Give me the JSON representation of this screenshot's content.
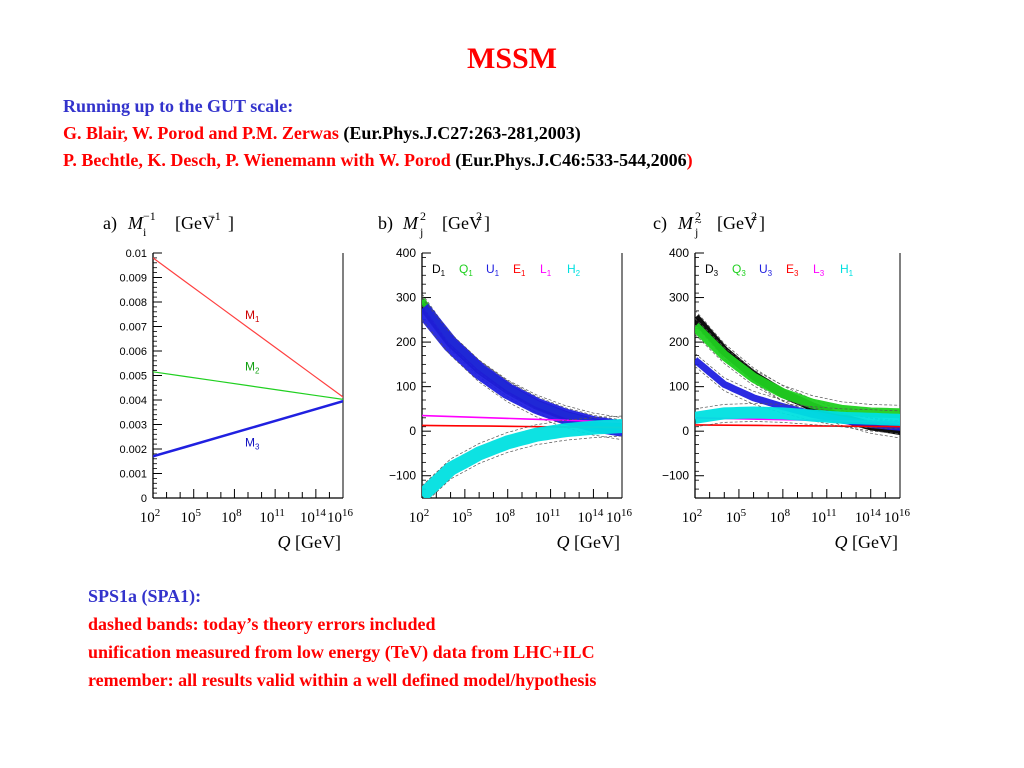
{
  "title": "MSSM",
  "refs": {
    "heading": "Running up to the GUT scale:",
    "ref1_authors": "G. Blair, W. Porod and P.M. Zerwas",
    "ref1_journal": "(Eur.Phys.J.C27:263-281,2003)",
    "ref2_authors": "P. Bechtle, K. Desch, P. Wienemann with W. Porod",
    "ref2_journal": "(Eur.Phys.J.C46:533-544,2006",
    "ref2_close": ")"
  },
  "notes": {
    "line1": "SPS1a (SPA1):",
    "line2": "dashed bands: today’s theory errors included",
    "line3": "unification measured from low energy (TeV) data from LHC+ILC",
    "line4": "remember: all results valid within a well defined model/hypothesis"
  },
  "chart_data": [
    {
      "type": "line",
      "panel_label": "a)",
      "ylabel": "[GeV⁻¹]",
      "xlabel": "Q [GeV]",
      "x_scale": "log",
      "xlim": [
        100,
        1e+16
      ],
      "ylim": [
        0,
        0.01
      ],
      "yticks": [
        "0",
        "0.001",
        "0.002",
        "0.003",
        "0.004",
        "0.005",
        "0.006",
        "0.007",
        "0.008",
        "0.009",
        "0.01"
      ],
      "xticks": [
        "10^2",
        "10^5",
        "10^8",
        "10^11",
        "10^14",
        "10^16"
      ],
      "series": [
        {
          "name": "M1",
          "color": "#ff4040",
          "x": [
            100,
            2e+16
          ],
          "y": [
            0.0098,
            0.004
          ]
        },
        {
          "name": "M2",
          "color": "#20d020",
          "x": [
            100,
            2e+16
          ],
          "y": [
            0.00515,
            0.004
          ]
        },
        {
          "name": "M3",
          "color": "#2020e0",
          "x": [
            100,
            2e+16
          ],
          "y": [
            0.0017,
            0.004
          ]
        }
      ]
    },
    {
      "type": "area",
      "panel_label": "b)",
      "ylabel": "[GeV²]",
      "xlabel": "Q [GeV]",
      "x_scale": "log",
      "xlim": [
        100,
        1e+16
      ],
      "ylim": [
        -150,
        400
      ],
      "yticks": [
        "−100",
        "0",
        "100",
        "200",
        "300",
        "400"
      ],
      "xticks": [
        "10^2",
        "10^5",
        "10^8",
        "10^11",
        "10^14",
        "10^16"
      ],
      "legend": [
        "D1",
        "Q1",
        "U1",
        "E1",
        "L1",
        "H2"
      ],
      "series": [
        {
          "name": "D1",
          "color": "#000000",
          "x": [
            100,
            10000.0,
            1000000.0,
            100000000.0,
            10000000000.0,
            1000000000000.0,
            100000000000000.0,
            2e+16
          ],
          "y": [
            285,
            200,
            140,
            95,
            60,
            35,
            18,
            5
          ]
        },
        {
          "name": "Q1",
          "color": "#20d020",
          "x": [
            100,
            10000.0,
            1000000.0,
            100000000.0,
            10000000000.0,
            1000000000000.0,
            100000000000000.0,
            2e+16
          ],
          "y": [
            295,
            205,
            145,
            98,
            62,
            37,
            20,
            6
          ]
        },
        {
          "name": "U1",
          "color": "#2020e0",
          "x": [
            100,
            10000.0,
            1000000.0,
            100000000.0,
            10000000000.0,
            1000000000000.0,
            100000000000000.0,
            2e+16
          ],
          "y": [
            275,
            195,
            135,
            90,
            57,
            33,
            16,
            4
          ]
        },
        {
          "name": "E1",
          "color": "#ff0000",
          "x": [
            100,
            2e+16
          ],
          "y": [
            13,
            8
          ]
        },
        {
          "name": "L1",
          "color": "#ff00ff",
          "x": [
            100,
            2e+16
          ],
          "y": [
            35,
            20
          ]
        },
        {
          "name": "H2",
          "color": "#00e0e0",
          "x": [
            100,
            10000.0,
            1000000.0,
            100000000.0,
            10000000000.0,
            1000000000000.0,
            100000000000000.0,
            2e+16
          ],
          "y": [
            -145,
            -85,
            -50,
            -25,
            -8,
            2,
            8,
            12
          ]
        }
      ]
    },
    {
      "type": "area",
      "panel_label": "c)",
      "ylabel": "[GeV²]",
      "xlabel": "Q [GeV]",
      "x_scale": "log",
      "xlim": [
        100,
        1e+16
      ],
      "ylim": [
        -150,
        400
      ],
      "yticks": [
        "−100",
        "0",
        "100",
        "200",
        "300",
        "400"
      ],
      "xticks": [
        "10^2",
        "10^5",
        "10^8",
        "10^11",
        "10^14",
        "10^16"
      ],
      "legend": [
        "D3",
        "Q3",
        "U3",
        "E3",
        "L3",
        "H1"
      ],
      "series": [
        {
          "name": "D3",
          "color": "#000000",
          "x": [
            100,
            10000.0,
            1000000.0,
            100000000.0,
            10000000000.0,
            1000000000000.0,
            100000000000000.0,
            2e+16
          ],
          "y": [
            255,
            180,
            125,
            85,
            55,
            30,
            12,
            0
          ]
        },
        {
          "name": "Q3",
          "color": "#20d020",
          "x": [
            100,
            10000.0,
            1000000.0,
            100000000.0,
            10000000000.0,
            1000000000000.0,
            100000000000000.0,
            2e+16
          ],
          "y": [
            235,
            170,
            120,
            85,
            62,
            48,
            42,
            40
          ]
        },
        {
          "name": "U3",
          "color": "#2020e0",
          "x": [
            100,
            10000.0,
            1000000.0,
            100000000.0,
            10000000000.0,
            1000000000000.0,
            100000000000000.0,
            2e+16
          ],
          "y": [
            160,
            105,
            75,
            55,
            38,
            25,
            15,
            8
          ]
        },
        {
          "name": "E3",
          "color": "#ff0000",
          "x": [
            100,
            2e+16
          ],
          "y": [
            14,
            10
          ]
        },
        {
          "name": "L3",
          "color": "#ff00ff",
          "x": [
            100,
            2e+16
          ],
          "y": [
            30,
            20
          ]
        },
        {
          "name": "H1",
          "color": "#00e0e0",
          "x": [
            100,
            10000.0,
            1000000.0,
            100000000.0,
            10000000000.0,
            1000000000000.0,
            100000000000000.0,
            2e+16
          ],
          "y": [
            30,
            40,
            42,
            40,
            35,
            30,
            28,
            25
          ]
        }
      ]
    }
  ]
}
